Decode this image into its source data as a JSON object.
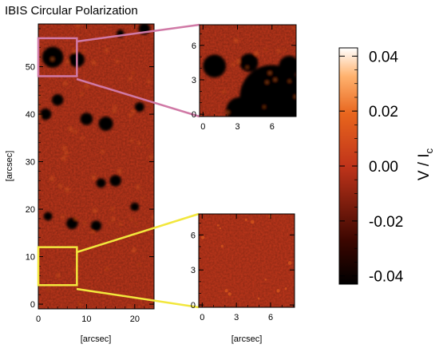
{
  "title": "IBIS Circular Polarization",
  "chart_data": [
    {
      "type": "heatmap",
      "name": "full-field",
      "xlabel": "[arcsec]",
      "ylabel": "[arcsec]",
      "xlim": [
        0,
        24
      ],
      "ylim": [
        -1,
        59
      ],
      "xticks": [
        0,
        10,
        20
      ],
      "yticks": [
        0,
        10,
        20,
        30,
        40,
        50
      ],
      "colormap": "red-temperature",
      "strong_negative_regions": [
        {
          "x": 3,
          "y": 52,
          "r": 2.2
        },
        {
          "x": 8,
          "y": 51.5,
          "r": 1.6
        },
        {
          "x": 1.5,
          "y": 40,
          "r": 1.2
        },
        {
          "x": 10,
          "y": 39,
          "r": 1.3
        },
        {
          "x": 14,
          "y": 38,
          "r": 1.5
        },
        {
          "x": 21,
          "y": 41.5,
          "r": 1.0
        },
        {
          "x": 22,
          "y": 58,
          "r": 1.2
        },
        {
          "x": 17,
          "y": 57,
          "r": 0.8
        },
        {
          "x": 16,
          "y": 26,
          "r": 1.2
        },
        {
          "x": 13,
          "y": 25.5,
          "r": 1.0
        },
        {
          "x": 7,
          "y": 17,
          "r": 1.2
        },
        {
          "x": 2,
          "y": 18.5,
          "r": 0.9
        },
        {
          "x": 12,
          "y": 16.5,
          "r": 1.1
        },
        {
          "x": 20,
          "y": 20.5,
          "r": 0.9
        },
        {
          "x": 4,
          "y": 43,
          "r": 1.2
        }
      ],
      "zoom_boxes": [
        {
          "x": [
            0,
            8
          ],
          "y": [
            48,
            56
          ],
          "color": "#d079a6"
        },
        {
          "x": [
            0,
            8
          ],
          "y": [
            4,
            12
          ],
          "color": "#f2e73d"
        }
      ]
    },
    {
      "type": "heatmap",
      "name": "zoom-top",
      "xlim": [
        -0.3,
        8.1
      ],
      "ylim": [
        -0.2,
        7.8
      ],
      "xticks": [
        0,
        3,
        6
      ],
      "yticks": [
        0,
        3,
        6
      ],
      "strong_negative_regions": [
        {
          "x": 6,
          "y": 1.5,
          "r": 2.8
        },
        {
          "x": 3.2,
          "y": 0.3,
          "r": 1.2
        },
        {
          "x": 1,
          "y": 4.2,
          "r": 1.0
        },
        {
          "x": 4,
          "y": 4.5,
          "r": 0.8
        },
        {
          "x": 7.5,
          "y": 4.2,
          "r": 0.9
        }
      ]
    },
    {
      "type": "heatmap",
      "name": "zoom-bottom",
      "xlabel": "[arcsec]",
      "xlim": [
        -0.3,
        8.1
      ],
      "ylim": [
        -0.2,
        7.8
      ],
      "xticks": [
        0,
        3,
        6
      ],
      "yticks": [
        0,
        3,
        6
      ],
      "strong_negative_regions": []
    },
    {
      "type": "colorbar",
      "label_main": "V / I",
      "label_sub": "c",
      "range": [
        -0.043,
        0.043
      ],
      "ticks": [
        "0.04",
        "0.02",
        "0.00",
        "-0.02",
        "-0.04"
      ],
      "tick_values": [
        0.04,
        0.02,
        0.0,
        -0.02,
        -0.04
      ],
      "colors": {
        "min": "#000000",
        "mid": "#c0341a",
        "high": "#ff8a2a",
        "max": "#ffffff"
      }
    }
  ]
}
